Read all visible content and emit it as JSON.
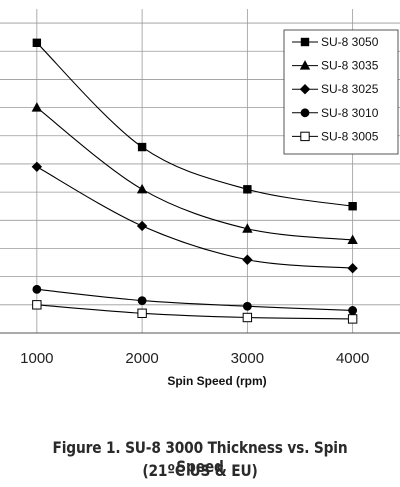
{
  "caption": {
    "line1": "Figure 1. SU-8 3000 Thickness vs. Spin Speed",
    "line2": "(21ºC US & EU)"
  },
  "chart_data": {
    "type": "line",
    "title": "",
    "xlabel": "Spin Speed (rpm)",
    "ylabel": "",
    "x": [
      1000,
      2000,
      3000,
      4000
    ],
    "x_tick_labels": [
      "1000",
      "2000",
      "3000",
      "4000"
    ],
    "xlim": [
      650,
      4450
    ],
    "ylim": [
      0,
      11.5
    ],
    "y_gridlines": [
      1,
      2,
      3,
      4,
      5,
      6,
      7,
      8,
      9,
      10,
      11
    ],
    "grid": "horizontal",
    "legend_position": "top-right",
    "series": [
      {
        "name": "SU-8 3050",
        "marker": "square",
        "values": [
          10.3,
          6.6,
          5.1,
          4.5
        ]
      },
      {
        "name": "SU-8 3035",
        "marker": "triangle",
        "values": [
          8.0,
          5.1,
          3.7,
          3.3
        ]
      },
      {
        "name": "SU-8 3025",
        "marker": "diamond",
        "values": [
          5.9,
          3.8,
          2.6,
          2.3
        ]
      },
      {
        "name": "SU-8 3010",
        "marker": "circle",
        "values": [
          1.55,
          1.15,
          0.95,
          0.8
        ]
      },
      {
        "name": "SU-8 3005",
        "marker": "open-square",
        "values": [
          1.0,
          0.7,
          0.55,
          0.5
        ]
      }
    ]
  }
}
